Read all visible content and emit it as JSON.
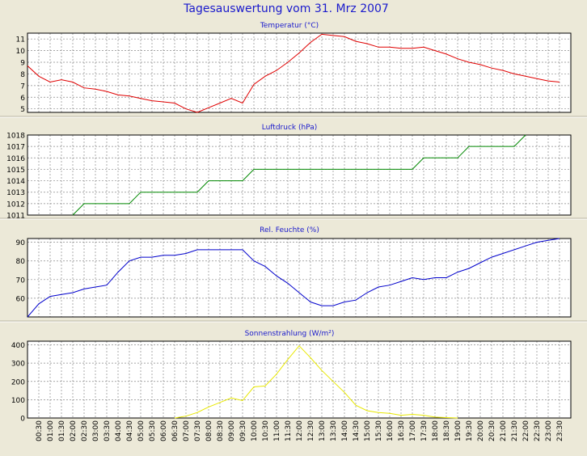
{
  "title": "Tagesauswertung vom 31. Mrz 2007",
  "colors": {
    "background": "#ece9d8",
    "plot_background": "#ffffff",
    "title_text": "#1a1acc",
    "grid": "#8a8a8a",
    "temperature": "#e00000",
    "pressure": "#008800",
    "humidity": "#0000cc",
    "radiation": "#e8e800"
  },
  "time_labels": [
    "00:30",
    "01:00",
    "01:30",
    "02:00",
    "02:30",
    "03:00",
    "03:30",
    "04:00",
    "04:30",
    "05:00",
    "05:30",
    "06:00",
    "06:30",
    "07:00",
    "07:30",
    "08:00",
    "08:30",
    "09:00",
    "09:30",
    "10:00",
    "10:30",
    "11:00",
    "11:30",
    "12:00",
    "12:30",
    "13:00",
    "13:30",
    "14:00",
    "14:30",
    "15:00",
    "15:30",
    "16:00",
    "16:30",
    "17:00",
    "17:30",
    "18:00",
    "18:30",
    "19:00",
    "19:30",
    "20:00",
    "20:30",
    "21:00",
    "21:30",
    "22:00",
    "22:30",
    "23:00",
    "23:30"
  ],
  "chart_data": [
    {
      "type": "line",
      "title": "Temperatur (°C)",
      "ylim": [
        4.7,
        11.5
      ],
      "yticks": [
        5,
        6,
        7,
        8,
        9,
        10,
        11
      ],
      "grid": true,
      "series": [
        {
          "color": "#e00000",
          "x": [
            "00:00",
            "00:30",
            "01:00",
            "01:30",
            "02:00",
            "02:30",
            "03:00",
            "03:30",
            "04:00",
            "04:30",
            "05:00",
            "05:30",
            "06:00",
            "06:30",
            "07:00",
            "07:30",
            "08:00",
            "08:30",
            "09:00",
            "09:30",
            "10:00",
            "10:30",
            "11:00",
            "11:30",
            "12:00",
            "12:30",
            "13:00",
            "13:30",
            "14:00",
            "14:30",
            "15:00",
            "15:30",
            "16:00",
            "16:30",
            "17:00",
            "17:30",
            "18:00",
            "18:30",
            "19:00",
            "19:30",
            "20:00",
            "20:30",
            "21:00",
            "21:30",
            "22:00",
            "22:30",
            "23:00",
            "23:30"
          ],
          "values": [
            8.7,
            7.8,
            7.3,
            7.5,
            7.3,
            6.8,
            6.7,
            6.5,
            6.2,
            6.1,
            5.9,
            5.7,
            5.6,
            5.5,
            5.0,
            4.7,
            5.1,
            5.5,
            5.9,
            5.5,
            7.1,
            7.8,
            8.3,
            9.0,
            9.8,
            10.7,
            11.4,
            11.3,
            11.2,
            10.8,
            10.6,
            10.3,
            10.3,
            10.2,
            10.2,
            10.3,
            10.0,
            9.7,
            9.3,
            9.0,
            8.8,
            8.5,
            8.3,
            8.0,
            7.8,
            7.6,
            7.4,
            7.3
          ]
        }
      ]
    },
    {
      "type": "line",
      "title": "Luftdruck (hPa)",
      "ylim": [
        1011,
        1018
      ],
      "yticks": [
        1011,
        1012,
        1013,
        1014,
        1015,
        1016,
        1017,
        1018
      ],
      "grid": true,
      "series": [
        {
          "color": "#008800",
          "x": [
            "02:00",
            "02:30",
            "03:00",
            "03:30",
            "04:00",
            "04:30",
            "05:00",
            "05:30",
            "06:00",
            "06:30",
            "07:00",
            "07:30",
            "08:00",
            "08:30",
            "09:00",
            "09:30",
            "10:00",
            "10:30",
            "11:00",
            "11:30",
            "12:00",
            "12:30",
            "13:00",
            "13:30",
            "14:00",
            "14:30",
            "15:00",
            "15:30",
            "16:00",
            "16:30",
            "17:00",
            "17:30",
            "18:00",
            "18:30",
            "19:00",
            "19:30",
            "20:00",
            "20:30",
            "21:00",
            "21:30",
            "22:00"
          ],
          "values": [
            1011,
            1012,
            1012,
            1012,
            1012,
            1012,
            1013,
            1013,
            1013,
            1013,
            1013,
            1013,
            1014,
            1014,
            1014,
            1014,
            1015,
            1015,
            1015,
            1015,
            1015,
            1015,
            1015,
            1015,
            1015,
            1015,
            1015,
            1015,
            1015,
            1015,
            1015,
            1016,
            1016,
            1016,
            1016,
            1017,
            1017,
            1017,
            1017,
            1017,
            1018
          ]
        }
      ]
    },
    {
      "type": "line",
      "title": "Rel. Feuchte (%)",
      "ylim": [
        50,
        92
      ],
      "yticks": [
        60,
        70,
        80,
        90
      ],
      "grid": true,
      "series": [
        {
          "color": "#0000cc",
          "x": [
            "00:00",
            "00:30",
            "01:00",
            "01:30",
            "02:00",
            "02:30",
            "03:00",
            "03:30",
            "04:00",
            "04:30",
            "05:00",
            "05:30",
            "06:00",
            "06:30",
            "07:00",
            "07:30",
            "08:00",
            "08:30",
            "09:00",
            "09:30",
            "10:00",
            "10:30",
            "11:00",
            "11:30",
            "12:00",
            "12:30",
            "13:00",
            "13:30",
            "14:00",
            "14:30",
            "15:00",
            "15:30",
            "16:00",
            "16:30",
            "17:00",
            "17:30",
            "18:00",
            "18:30",
            "19:00",
            "19:30",
            "20:00",
            "20:30",
            "21:00",
            "21:30",
            "22:00",
            "22:30",
            "23:00",
            "23:30"
          ],
          "values": [
            50,
            57,
            61,
            62,
            63,
            65,
            66,
            67,
            74,
            80,
            82,
            82,
            83,
            83,
            84,
            86,
            86,
            86,
            86,
            86,
            80,
            77,
            72,
            68,
            63,
            58,
            56,
            56,
            58,
            59,
            63,
            66,
            67,
            69,
            71,
            70,
            71,
            71,
            74,
            76,
            79,
            82,
            84,
            86,
            88,
            90,
            91,
            92
          ]
        }
      ]
    },
    {
      "type": "line",
      "title": "Sonnenstrahlung (W/m²)",
      "ylim": [
        0,
        420
      ],
      "yticks": [
        0,
        100,
        200,
        300,
        400
      ],
      "grid": true,
      "series": [
        {
          "color": "#e8e800",
          "x": [
            "06:30",
            "07:00",
            "07:30",
            "08:00",
            "08:30",
            "09:00",
            "09:30",
            "10:00",
            "10:30",
            "11:00",
            "11:30",
            "12:00",
            "12:30",
            "13:00",
            "13:30",
            "14:00",
            "14:30",
            "15:00",
            "15:30",
            "16:00",
            "16:30",
            "17:00",
            "17:30",
            "18:00",
            "18:30",
            "19:00"
          ],
          "values": [
            0,
            10,
            30,
            60,
            85,
            110,
            95,
            170,
            175,
            240,
            320,
            395,
            330,
            260,
            200,
            140,
            70,
            40,
            30,
            25,
            15,
            20,
            15,
            5,
            2,
            0
          ]
        }
      ]
    }
  ]
}
